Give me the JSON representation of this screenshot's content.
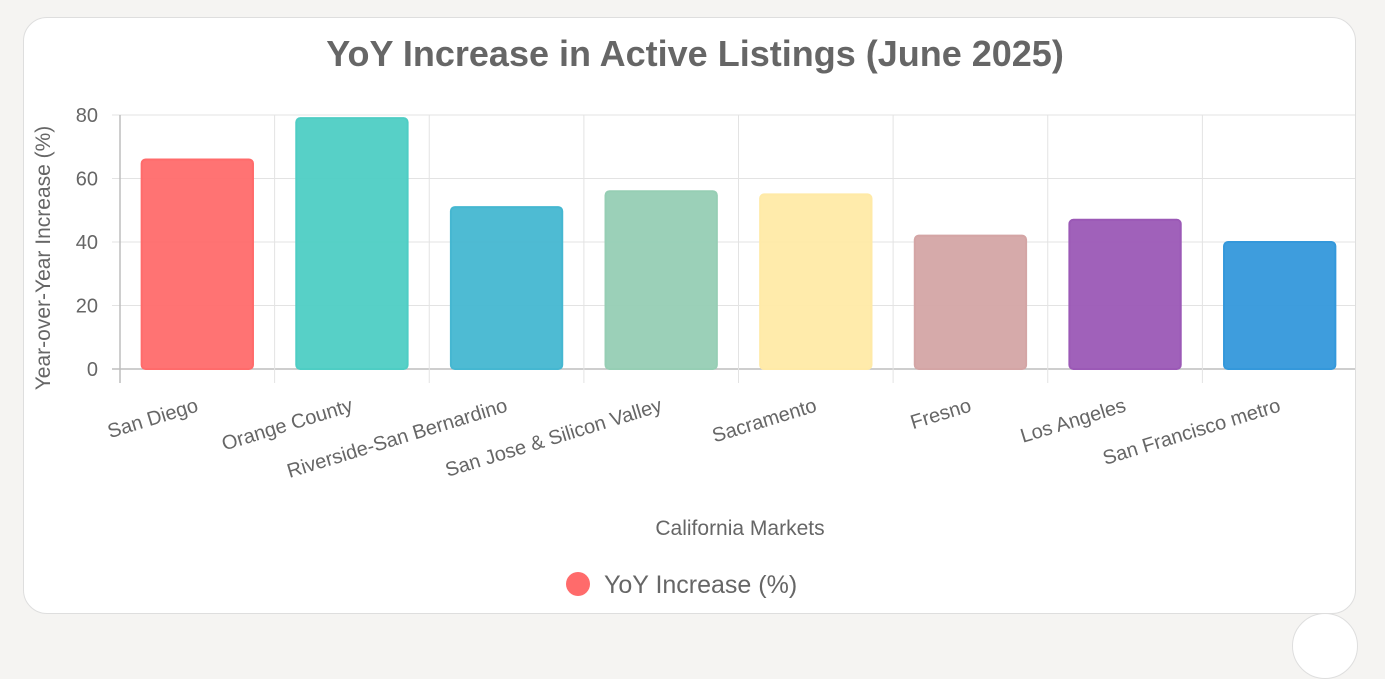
{
  "chart_data": {
    "type": "bar",
    "title": "YoY Increase in Active Listings (June 2025)",
    "xlabel": "California Markets",
    "ylabel": "Year-over-Year Increase (%)",
    "categories": [
      "San Diego",
      "Orange County",
      "Riverside-San Bernardino",
      "San Jose & Silicon Valley",
      "Sacramento",
      "Fresno",
      "Los Angeles",
      "San Francisco metro"
    ],
    "series": [
      {
        "name": "YoY Increase (%)",
        "values": [
          66,
          79,
          51,
          56,
          55,
          42,
          47,
          40
        ]
      }
    ],
    "ylim": [
      0,
      80
    ],
    "yticks": [
      0,
      20,
      40,
      60,
      80
    ],
    "grid": true,
    "legend": "bottom",
    "colors": [
      "#ff6b6b",
      "#4ecdc4",
      "#45b7d1",
      "#96ceb4",
      "#ffeaa7",
      "#d4a5a5",
      "#9b59b6",
      "#3498db"
    ],
    "legend_color": "#ff6b6b"
  }
}
